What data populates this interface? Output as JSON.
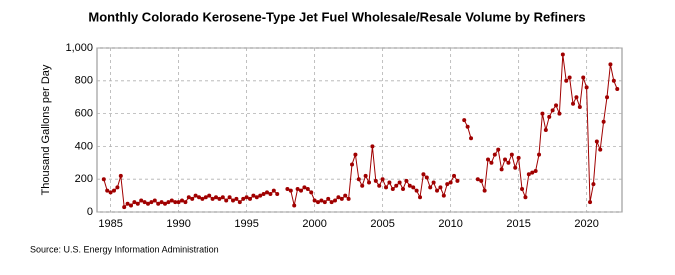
{
  "chart_data": {
    "type": "line",
    "title": "Monthly Colorado Kerosene-Type Jet Fuel Wholesale/Resale Volume by Refiners",
    "y_label": "Thousand Gallons per Day",
    "source": "Source: U.S. Energy Information Administration",
    "color": "#a00000",
    "grid": true,
    "xlim": [
      1984,
      2022.6
    ],
    "xticks": [
      1985,
      1990,
      1995,
      2000,
      2005,
      2010,
      2015,
      2020
    ],
    "ylim": [
      0,
      1000
    ],
    "yticks": [
      0,
      200,
      400,
      600,
      800,
      {
        "value": 1000,
        "label": "1,000"
      }
    ],
    "x": [
      1984.5,
      1984.75,
      1985,
      1985.25,
      1985.5,
      1985.75,
      1986,
      1986.25,
      1986.5,
      1986.75,
      1987,
      1987.25,
      1987.5,
      1987.75,
      1988,
      1988.25,
      1988.5,
      1988.75,
      1989,
      1989.25,
      1989.5,
      1989.75,
      1990,
      1990.25,
      1990.5,
      1990.75,
      1991,
      1991.25,
      1991.5,
      1991.75,
      1992,
      1992.25,
      1992.5,
      1992.75,
      1993,
      1993.25,
      1993.5,
      1993.75,
      1994,
      1994.25,
      1994.5,
      1994.75,
      1995,
      1995.25,
      1995.5,
      1995.75,
      1996,
      1996.25,
      1996.5,
      1996.75,
      1997,
      1997.25,
      1997.5,
      1998,
      1998.25,
      1998.5,
      1998.75,
      1999,
      1999.25,
      1999.5,
      1999.75,
      2000,
      2000.25,
      2000.5,
      2000.75,
      2001,
      2001.25,
      2001.5,
      2001.75,
      2002,
      2002.25,
      2002.5,
      2002.75,
      2003,
      2003.25,
      2003.5,
      2003.75,
      2004,
      2004.25,
      2004.5,
      2004.75,
      2005,
      2005.25,
      2005.5,
      2005.75,
      2006,
      2006.25,
      2006.5,
      2006.75,
      2007,
      2007.25,
      2007.5,
      2007.75,
      2008,
      2008.25,
      2008.5,
      2008.75,
      2009,
      2009.25,
      2009.5,
      2009.75,
      2010,
      2010.25,
      2010.5,
      2010.75,
      2011,
      2011.25,
      2011.5,
      2011.75,
      2012,
      2012.25,
      2012.5,
      2012.75,
      2013,
      2013.25,
      2013.5,
      2013.75,
      2014,
      2014.25,
      2014.5,
      2014.75,
      2015,
      2015.25,
      2015.5,
      2015.75,
      2016,
      2016.25,
      2016.5,
      2016.75,
      2017,
      2017.25,
      2017.5,
      2017.75,
      2018,
      2018.25,
      2018.5,
      2018.75,
      2019,
      2019.25,
      2019.5,
      2019.75,
      2020,
      2020.25,
      2020.5,
      2020.75,
      2021,
      2021.25,
      2021.5,
      2021.75,
      2022,
      2022.25
    ],
    "values": [
      200,
      130,
      120,
      130,
      150,
      220,
      30,
      50,
      40,
      60,
      50,
      70,
      60,
      50,
      60,
      70,
      50,
      60,
      50,
      60,
      70,
      60,
      60,
      70,
      60,
      90,
      80,
      100,
      90,
      80,
      90,
      100,
      80,
      90,
      80,
      90,
      70,
      90,
      70,
      80,
      60,
      80,
      90,
      80,
      100,
      90,
      100,
      110,
      120,
      110,
      130,
      110,
      null,
      140,
      130,
      40,
      140,
      130,
      150,
      140,
      120,
      70,
      60,
      70,
      60,
      80,
      60,
      70,
      90,
      80,
      100,
      80,
      290,
      350,
      200,
      160,
      220,
      180,
      400,
      190,
      160,
      200,
      150,
      180,
      140,
      160,
      180,
      140,
      190,
      160,
      150,
      130,
      90,
      230,
      210,
      150,
      180,
      130,
      150,
      100,
      170,
      180,
      220,
      190,
      null,
      560,
      520,
      450,
      null,
      200,
      190,
      130,
      320,
      300,
      350,
      380,
      260,
      320,
      300,
      350,
      270,
      330,
      140,
      90,
      230,
      240,
      250,
      350,
      600,
      500,
      580,
      620,
      650,
      600,
      960,
      800,
      820,
      660,
      700,
      640,
      820,
      760,
      60,
      170,
      430,
      380,
      550,
      700,
      900,
      800,
      750
    ]
  }
}
